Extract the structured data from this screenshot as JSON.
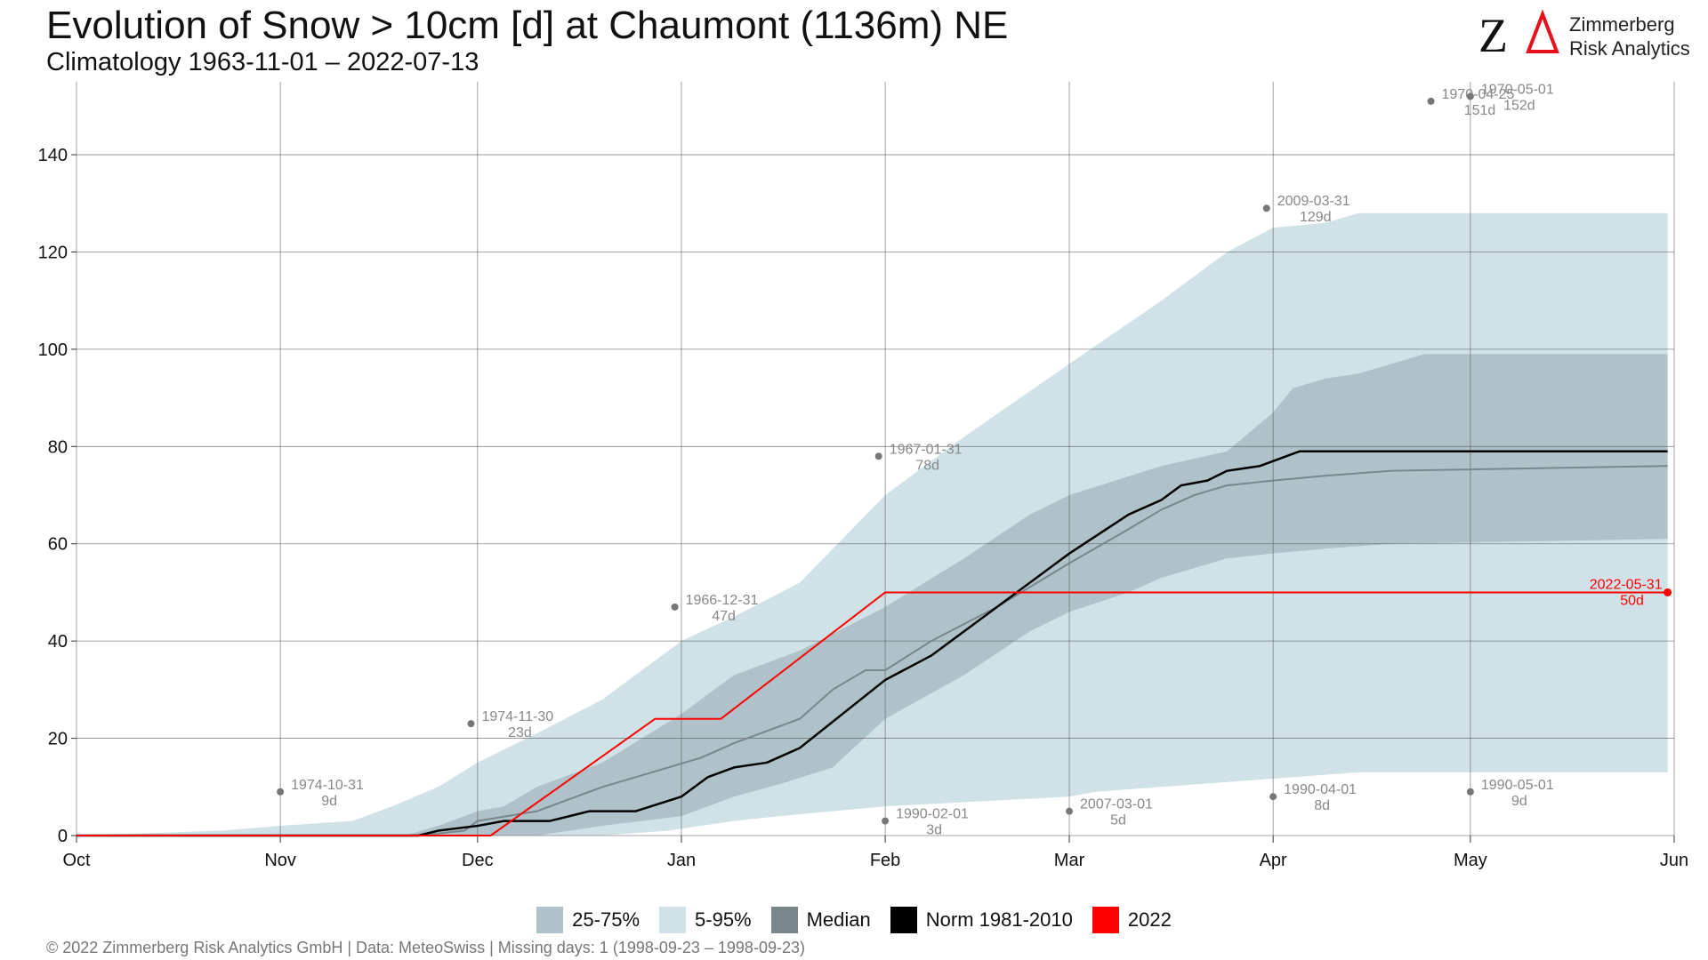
{
  "header": {
    "title": "Evolution of Snow > 10cm [d] at Chaumont (1136m) NE",
    "subtitle": "Climatology 1963-11-01 – 2022-07-13"
  },
  "logo": {
    "line1": "Zimmerberg",
    "line2": "Risk Analytics",
    "accent": "#e8101a"
  },
  "footer": {
    "text": "©  2022 Zimmerberg Risk Analytics GmbH | Data: MeteoSwiss | Missing days: 1 (1998-09-23 – 1998-09-23)"
  },
  "legend": [
    {
      "label": "25-75%",
      "color": "#afc2c9"
    },
    {
      "label": "5-95%",
      "color": "#d0e2e8"
    },
    {
      "label": "Median",
      "color": "#79878d"
    },
    {
      "label": "Norm 1981-2010",
      "color": "#000000"
    },
    {
      "label": "2022",
      "color": "#ff0000"
    }
  ],
  "chart_data": {
    "type": "area",
    "x_unit": "day of season (0 = 1 Oct)",
    "xlim": [
      0,
      243
    ],
    "ylim": [
      0,
      155
    ],
    "yticks": [
      0,
      20,
      40,
      60,
      80,
      100,
      120,
      140
    ],
    "xticks": [
      {
        "label": "Oct",
        "x": 0
      },
      {
        "label": "Nov",
        "x": 31
      },
      {
        "label": "Dec",
        "x": 61
      },
      {
        "label": "Jan",
        "x": 92
      },
      {
        "label": "Feb",
        "x": 123
      },
      {
        "label": "Mar",
        "x": 151
      },
      {
        "label": "Apr",
        "x": 182
      },
      {
        "label": "May",
        "x": 212
      },
      {
        "label": "Jun",
        "x": 243
      }
    ],
    "grid": true,
    "legend_position": "bottom",
    "bands": [
      {
        "name": "5-95%",
        "color": "#d0e2e8",
        "upper": [
          [
            0,
            0
          ],
          [
            22,
            1
          ],
          [
            31,
            2
          ],
          [
            42,
            3
          ],
          [
            48,
            6
          ],
          [
            55,
            10
          ],
          [
            61,
            15
          ],
          [
            70,
            21
          ],
          [
            80,
            28
          ],
          [
            92,
            40
          ],
          [
            100,
            45
          ],
          [
            110,
            52
          ],
          [
            123,
            70
          ],
          [
            135,
            82
          ],
          [
            151,
            97
          ],
          [
            165,
            110
          ],
          [
            175,
            120
          ],
          [
            182,
            125
          ],
          [
            190,
            126
          ],
          [
            195,
            128
          ],
          [
            242,
            128
          ]
        ],
        "lower": [
          [
            0,
            0
          ],
          [
            80,
            0
          ],
          [
            90,
            1
          ],
          [
            95,
            2
          ],
          [
            100,
            3
          ],
          [
            107,
            4
          ],
          [
            115,
            5
          ],
          [
            123,
            6
          ],
          [
            151,
            8
          ],
          [
            155,
            9
          ],
          [
            175,
            11
          ],
          [
            195,
            13
          ],
          [
            242,
            13
          ]
        ]
      },
      {
        "name": "25-75%",
        "color": "#afc2c9",
        "upper": [
          [
            0,
            0
          ],
          [
            50,
            0
          ],
          [
            55,
            2
          ],
          [
            61,
            5
          ],
          [
            65,
            6
          ],
          [
            70,
            10
          ],
          [
            80,
            15
          ],
          [
            92,
            25
          ],
          [
            100,
            33
          ],
          [
            110,
            38
          ],
          [
            123,
            47
          ],
          [
            135,
            57
          ],
          [
            145,
            66
          ],
          [
            151,
            70
          ],
          [
            165,
            76
          ],
          [
            175,
            79
          ],
          [
            182,
            87
          ],
          [
            185,
            92
          ],
          [
            190,
            94
          ],
          [
            195,
            95
          ],
          [
            200,
            97
          ],
          [
            205,
            99
          ],
          [
            242,
            99
          ]
        ],
        "lower": [
          [
            0,
            0
          ],
          [
            70,
            0
          ],
          [
            80,
            2
          ],
          [
            92,
            4
          ],
          [
            100,
            8
          ],
          [
            108,
            11
          ],
          [
            115,
            14
          ],
          [
            123,
            24
          ],
          [
            135,
            33
          ],
          [
            145,
            42
          ],
          [
            151,
            46
          ],
          [
            160,
            50
          ],
          [
            165,
            53
          ],
          [
            170,
            55
          ],
          [
            175,
            57
          ],
          [
            182,
            58
          ],
          [
            190,
            59
          ],
          [
            200,
            60
          ],
          [
            242,
            61
          ]
        ]
      }
    ],
    "series": [
      {
        "name": "Median",
        "color": "#79878d",
        "width": 2,
        "points": [
          [
            0,
            0
          ],
          [
            52,
            0
          ],
          [
            59,
            1
          ],
          [
            61,
            3
          ],
          [
            70,
            5
          ],
          [
            80,
            10
          ],
          [
            90,
            14
          ],
          [
            95,
            16
          ],
          [
            100,
            19
          ],
          [
            110,
            24
          ],
          [
            115,
            30
          ],
          [
            120,
            34
          ],
          [
            123,
            34
          ],
          [
            130,
            40
          ],
          [
            140,
            47
          ],
          [
            151,
            56
          ],
          [
            160,
            63
          ],
          [
            165,
            67
          ],
          [
            170,
            70
          ],
          [
            175,
            72
          ],
          [
            182,
            73
          ],
          [
            190,
            74
          ],
          [
            200,
            75
          ],
          [
            242,
            76
          ]
        ]
      },
      {
        "name": "Norm 1981-2010",
        "color": "#000000",
        "width": 2.5,
        "points": [
          [
            0,
            0
          ],
          [
            52,
            0
          ],
          [
            55,
            1
          ],
          [
            61,
            2
          ],
          [
            65,
            3
          ],
          [
            72,
            3
          ],
          [
            78,
            5
          ],
          [
            85,
            5
          ],
          [
            92,
            8
          ],
          [
            96,
            12
          ],
          [
            100,
            14
          ],
          [
            105,
            15
          ],
          [
            110,
            18
          ],
          [
            123,
            32
          ],
          [
            130,
            37
          ],
          [
            140,
            47
          ],
          [
            151,
            58
          ],
          [
            160,
            66
          ],
          [
            165,
            69
          ],
          [
            168,
            72
          ],
          [
            172,
            73
          ],
          [
            175,
            75
          ],
          [
            180,
            76
          ],
          [
            186,
            79
          ],
          [
            242,
            79
          ]
        ]
      },
      {
        "name": "2022",
        "color": "#ff0000",
        "width": 2,
        "points": [
          [
            0,
            0
          ],
          [
            63,
            0
          ],
          [
            88,
            24
          ],
          [
            98,
            24
          ],
          [
            123,
            50
          ],
          [
            242,
            50
          ]
        ]
      }
    ],
    "annotations": [
      {
        "date": "1974-10-31",
        "value": "9d",
        "x": 31,
        "y": 9
      },
      {
        "date": "1974-11-30",
        "value": "23d",
        "x": 60,
        "y": 23
      },
      {
        "date": "1966-12-31",
        "value": "47d",
        "x": 91,
        "y": 47
      },
      {
        "date": "1967-01-31",
        "value": "78d",
        "x": 122,
        "y": 78
      },
      {
        "date": "1990-02-01",
        "value": "3d",
        "x": 123,
        "y": 3
      },
      {
        "date": "2007-03-01",
        "value": "5d",
        "x": 151,
        "y": 5
      },
      {
        "date": "2009-03-31",
        "value": "129d",
        "x": 181,
        "y": 129
      },
      {
        "date": "1990-04-01",
        "value": "8d",
        "x": 182,
        "y": 8
      },
      {
        "date": "1970-04-25",
        "value": "151d",
        "x": 206,
        "y": 151
      },
      {
        "date": "1970-05-01",
        "value": "152d",
        "x": 212,
        "y": 152
      },
      {
        "date": "1990-05-01",
        "value": "9d",
        "x": 212,
        "y": 9
      }
    ],
    "highlight": {
      "date": "2022-05-31",
      "value": "50d",
      "x": 242,
      "y": 50,
      "color": "#ff0000"
    }
  }
}
